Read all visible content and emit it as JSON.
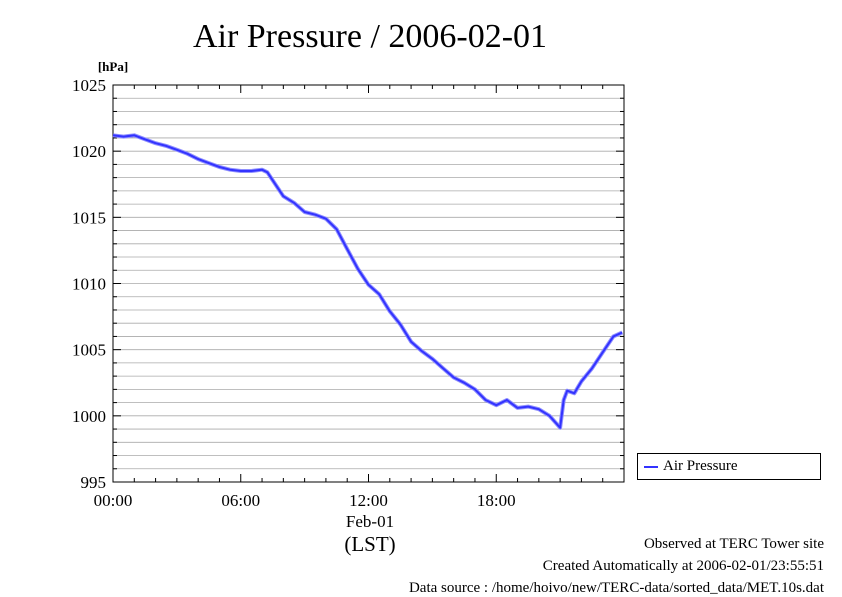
{
  "chart_data": {
    "type": "line",
    "title": "Air Pressure / 2006-02-01",
    "ylabel": "[hPa]",
    "xlabel": "(LST)",
    "date_label": "Feb-01",
    "ylim": [
      995,
      1025
    ],
    "yticks": [
      "995",
      "1000",
      "1005",
      "1010",
      "1015",
      "1020",
      "1025"
    ],
    "xlim": [
      "00:00",
      "24:00"
    ],
    "xticks": [
      "00:00",
      "06:00",
      "12:00",
      "18:00"
    ],
    "grid": "horizontal minor gridlines every 1 hPa",
    "legend_position": "right, outside plot",
    "series": [
      {
        "name": "Air Pressure",
        "color": "#3333ff",
        "x": [
          "00:00",
          "00:30",
          "01:00",
          "01:30",
          "02:00",
          "02:30",
          "03:00",
          "03:30",
          "04:00",
          "04:30",
          "05:00",
          "05:30",
          "06:00",
          "06:30",
          "07:00",
          "07:15",
          "07:30",
          "08:00",
          "08:30",
          "09:00",
          "09:30",
          "10:00",
          "10:30",
          "11:00",
          "11:30",
          "12:00",
          "12:30",
          "13:00",
          "13:30",
          "14:00",
          "14:30",
          "15:00",
          "15:30",
          "16:00",
          "16:30",
          "17:00",
          "17:30",
          "18:00",
          "18:30",
          "19:00",
          "19:30",
          "20:00",
          "20:30",
          "21:00",
          "21:10",
          "21:20",
          "21:40",
          "22:00",
          "22:30",
          "23:00",
          "23:30",
          "23:55"
        ],
        "values": [
          1021.2,
          1021.1,
          1021.2,
          1020.9,
          1020.6,
          1020.4,
          1020.1,
          1019.8,
          1019.4,
          1019.1,
          1018.8,
          1018.6,
          1018.5,
          1018.5,
          1018.6,
          1018.4,
          1017.8,
          1016.6,
          1016.1,
          1015.4,
          1015.2,
          1014.9,
          1014.1,
          1012.6,
          1011.1,
          1009.9,
          1009.2,
          1007.9,
          1006.9,
          1005.6,
          1004.9,
          1004.3,
          1003.6,
          1002.9,
          1002.5,
          1002.0,
          1001.2,
          1000.8,
          1001.2,
          1000.6,
          1000.7,
          1000.5,
          1000.0,
          999.1,
          1001.2,
          1001.9,
          1001.7,
          1002.6,
          1003.6,
          1004.8,
          1006.0,
          1006.3
        ]
      }
    ]
  },
  "footer": {
    "line1": "Observed at TERC Tower site",
    "line2": "Created Automatically at 2006-02-01/23:55:51",
    "line3": "Data source : /home/hoivo/new/TERC-data/sorted_data/MET.10s.dat"
  }
}
